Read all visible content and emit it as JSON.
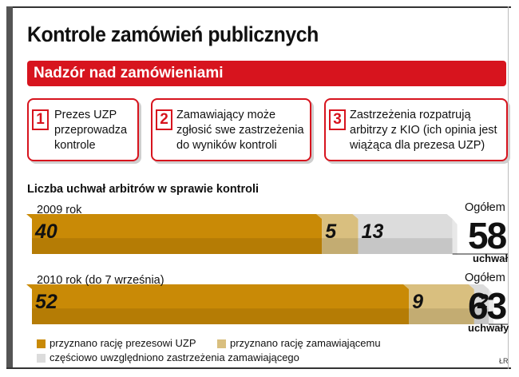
{
  "title": "Kontrole zamówień publicznych",
  "banner": "Nadzór nad zamówieniami",
  "steps": [
    {
      "num": "1",
      "lines": [
        "Prezes UZP",
        "przeprowadza",
        "kontrole"
      ]
    },
    {
      "num": "2",
      "lines": [
        "Zamawiający może",
        "zgłosić swe zastrzeżenia",
        "do wyników kontroli"
      ]
    },
    {
      "num": "3",
      "lines": [
        "Zastrzeżenia rozpatrują",
        "arbitrzy z KIO (ich opinia jest",
        "wiążąca dla prezesa UZP)"
      ]
    }
  ],
  "colors": {
    "accent": "#d7141e",
    "gold": "#c98a06",
    "tan": "#d9bf7f",
    "gray": "#dcdcdc"
  },
  "chart_data": {
    "type": "bar",
    "orientation": "horizontal",
    "stacked": true,
    "title": "Liczba uchwał arbitrów w sprawie kontroli",
    "categories": [
      "2009 rok",
      "2010 rok (do 7 września)"
    ],
    "series": [
      {
        "name": "przyznano rację prezesowi UZP",
        "values": [
          40,
          52
        ],
        "color": "#c98a06"
      },
      {
        "name": "przyznano rację zamawiającemu",
        "values": [
          5,
          9
        ],
        "color": "#d9bf7f"
      },
      {
        "name": "częściowo uwzględniono zastrzeżenia zamawiającego",
        "values": [
          13,
          2
        ],
        "color": "#dcdcdc"
      }
    ],
    "totals": [
      {
        "label": "Ogółem",
        "value": "58",
        "unit": "uchwał"
      },
      {
        "label": "Ogółem",
        "value": "63",
        "unit": "uchwały"
      }
    ],
    "legend": "bottom"
  },
  "credit": "ŁR"
}
